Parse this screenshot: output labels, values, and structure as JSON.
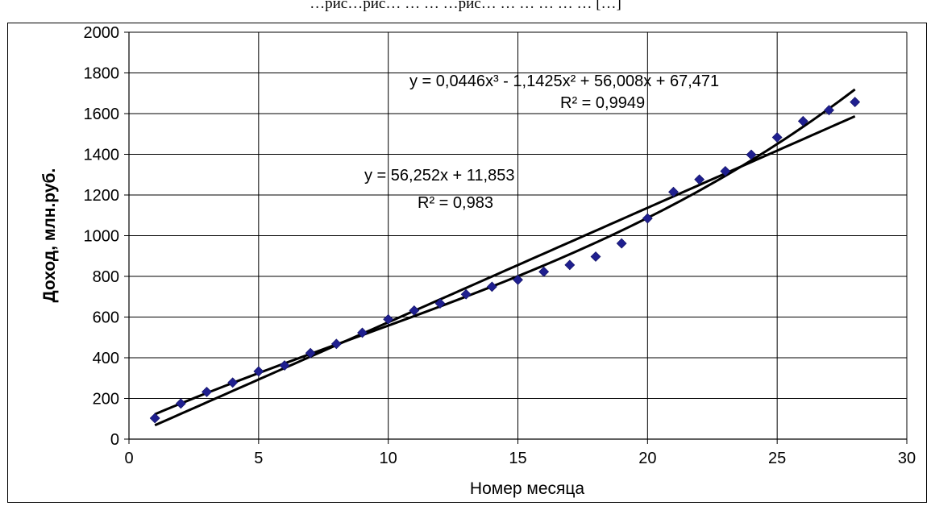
{
  "caption": "…рис…рис… … … …рис… … … … … … […]",
  "chart_data": {
    "type": "scatter",
    "xlabel": "Номер месяца",
    "ylabel": "Доход, млн.руб.",
    "xlim": [
      0,
      30
    ],
    "ylim": [
      0,
      2000
    ],
    "x_ticks": [
      "0",
      "5",
      "10",
      "15",
      "20",
      "25",
      "30"
    ],
    "y_ticks": [
      "0",
      "200",
      "400",
      "600",
      "800",
      "1000",
      "1200",
      "1400",
      "1600",
      "1800",
      "2000"
    ],
    "grid": true,
    "marker_color": "#1f1f8f",
    "line_color": "#000000",
    "points": [
      {
        "x": 1,
        "y": 103
      },
      {
        "x": 2,
        "y": 175
      },
      {
        "x": 3,
        "y": 232
      },
      {
        "x": 4,
        "y": 278
      },
      {
        "x": 5,
        "y": 333
      },
      {
        "x": 6,
        "y": 362
      },
      {
        "x": 7,
        "y": 423
      },
      {
        "x": 8,
        "y": 468
      },
      {
        "x": 9,
        "y": 523
      },
      {
        "x": 10,
        "y": 589
      },
      {
        "x": 11,
        "y": 632
      },
      {
        "x": 12,
        "y": 667
      },
      {
        "x": 13,
        "y": 712
      },
      {
        "x": 14,
        "y": 749
      },
      {
        "x": 15,
        "y": 783
      },
      {
        "x": 16,
        "y": 823
      },
      {
        "x": 17,
        "y": 856
      },
      {
        "x": 18,
        "y": 897
      },
      {
        "x": 19,
        "y": 962
      },
      {
        "x": 20,
        "y": 1085
      },
      {
        "x": 21,
        "y": 1215
      },
      {
        "x": 22,
        "y": 1276
      },
      {
        "x": 23,
        "y": 1317
      },
      {
        "x": 24,
        "y": 1398
      },
      {
        "x": 25,
        "y": 1483
      },
      {
        "x": 26,
        "y": 1563
      },
      {
        "x": 27,
        "y": 1617
      },
      {
        "x": 28,
        "y": 1657
      }
    ],
    "trendlines": [
      {
        "kind": "linear",
        "coefficients": [
          11.853,
          56.252
        ],
        "equation": "y = 56,252x + 11,853",
        "r2": "R² = 0,983"
      },
      {
        "kind": "polynomial",
        "coefficients": [
          67.471,
          56.008,
          -1.1425,
          0.0446
        ],
        "equation": "y = 0,0446x³ - 1,1425x² + 56,008x + 67,471",
        "r2": "R² = 0,9949"
      }
    ]
  }
}
